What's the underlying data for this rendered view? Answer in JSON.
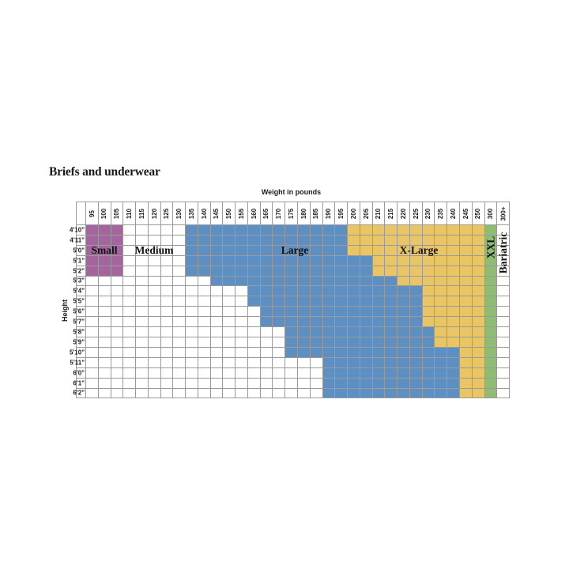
{
  "page": {
    "title": "Briefs and underwear",
    "x_axis_label": "Weight in pounds",
    "y_axis_label": "Height"
  },
  "size_labels": {
    "small": "Small",
    "medium": "Medium",
    "large": "Large",
    "xlarge": "X-Large",
    "xxl": "XXL",
    "bariatric": "Bariatric"
  },
  "colors": {
    "small": "#a4649d",
    "medium": "#ffffff",
    "large": "#5d8fc3",
    "xlarge": "#e9c566",
    "xxl": "#8dbc72",
    "bariatric": "#ffffff",
    "gridline": "#9a9a9a",
    "text": "#1a1a1a"
  },
  "chart_data": {
    "type": "heatmap",
    "title": "Briefs and underwear",
    "xlabel": "Weight in pounds",
    "ylabel": "Height",
    "columns": [
      "95",
      "100",
      "105",
      "110",
      "115",
      "120",
      "125",
      "130",
      "135",
      "140",
      "145",
      "150",
      "155",
      "160",
      "165",
      "170",
      "175",
      "180",
      "185",
      "190",
      "195",
      "200",
      "205",
      "210",
      "215",
      "220",
      "225",
      "230",
      "235",
      "240",
      "245",
      "250",
      "300",
      "300+"
    ],
    "notes": "Cells are colored by size region. Small spans 95-105 lbs for rows where small=true. Medium is the uncolored (white) area left of Large. Large (blue) runs from large_from up to the weight before xlarge_from. X-Large (yellow) runs from xlarge_from through 250. The 300 column is XXL (green) for every height; the 300+ column is Bariatric (white) for every height.",
    "rows": [
      {
        "height": "4'10\"",
        "small": true,
        "large_from": 135,
        "xlarge_from": 200
      },
      {
        "height": "4'11\"",
        "small": true,
        "large_from": 135,
        "xlarge_from": 200
      },
      {
        "height": "5'0\"",
        "small": true,
        "large_from": 135,
        "xlarge_from": 200
      },
      {
        "height": "5'1\"",
        "small": true,
        "large_from": 135,
        "xlarge_from": 210
      },
      {
        "height": "5'2\"",
        "small": true,
        "large_from": 135,
        "xlarge_from": 210
      },
      {
        "height": "5'3\"",
        "small": false,
        "large_from": 145,
        "xlarge_from": 220
      },
      {
        "height": "5'4\"",
        "small": false,
        "large_from": 160,
        "xlarge_from": 230
      },
      {
        "height": "5'5\"",
        "small": false,
        "large_from": 160,
        "xlarge_from": 230
      },
      {
        "height": "5'6\"",
        "small": false,
        "large_from": 165,
        "xlarge_from": 230
      },
      {
        "height": "5'7\"",
        "small": false,
        "large_from": 165,
        "xlarge_from": 230
      },
      {
        "height": "5'8\"",
        "small": false,
        "large_from": 175,
        "xlarge_from": 235
      },
      {
        "height": "5'9\"",
        "small": false,
        "large_from": 175,
        "xlarge_from": 235
      },
      {
        "height": "5'10\"",
        "small": false,
        "large_from": 175,
        "xlarge_from": 245
      },
      {
        "height": "5'11\"",
        "small": false,
        "large_from": 190,
        "xlarge_from": 245
      },
      {
        "height": "6'0\"",
        "small": false,
        "large_from": 190,
        "xlarge_from": 245
      },
      {
        "height": "6'1\"",
        "small": false,
        "large_from": 190,
        "xlarge_from": 245
      },
      {
        "height": "6'2\"",
        "small": false,
        "large_from": 190,
        "xlarge_from": 245
      }
    ]
  }
}
